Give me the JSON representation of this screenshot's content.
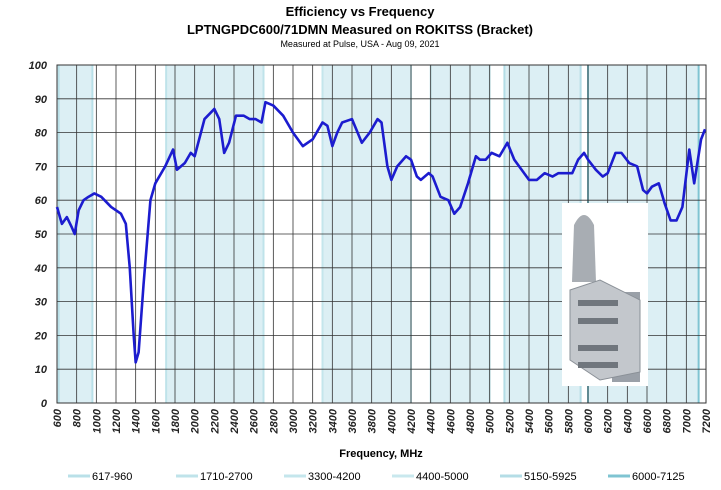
{
  "chart_data": {
    "type": "line",
    "title": "Efficiency vs Frequency",
    "subtitle": "LPTNGPDC600/71DMN Measured on ROKITSS (Bracket)",
    "note": "Measured at Pulse, USA - Aug 09, 2021",
    "x_label": "Frequency, MHz",
    "xlim": [
      600,
      7200
    ],
    "xticks": [
      600,
      800,
      1000,
      1200,
      1400,
      1600,
      1800,
      2000,
      2200,
      2400,
      2600,
      2800,
      3000,
      3200,
      3400,
      3600,
      3800,
      4000,
      4200,
      4400,
      4600,
      4800,
      5000,
      5200,
      5400,
      5600,
      5800,
      6000,
      6200,
      6400,
      6600,
      6800,
      7000,
      7200
    ],
    "ylim": [
      0,
      100
    ],
    "yticks": [
      0,
      10,
      20,
      30,
      40,
      50,
      60,
      70,
      80,
      90,
      100
    ],
    "grid": true,
    "bands": [
      {
        "label": "617-960",
        "start": 617,
        "end": 960,
        "color": "#b9e0e8"
      },
      {
        "label": "1710-2700",
        "start": 1710,
        "end": 2700,
        "color": "#bfe3ea"
      },
      {
        "label": "3300-4200",
        "start": 3300,
        "end": 4200,
        "color": "#c4e6ec"
      },
      {
        "label": "4400-5000",
        "start": 4400,
        "end": 5000,
        "color": "#c9e8ee"
      },
      {
        "label": "5150-5925",
        "start": 5150,
        "end": 5925,
        "color": "#b4dde6"
      },
      {
        "label": "6000-7125",
        "start": 6000,
        "end": 7125,
        "color": "#7fc4d2"
      }
    ],
    "x": [
      600,
      650,
      700,
      750,
      780,
      820,
      870,
      920,
      980,
      1050,
      1150,
      1250,
      1300,
      1340,
      1380,
      1400,
      1430,
      1480,
      1550,
      1600,
      1700,
      1780,
      1820,
      1900,
      1960,
      2000,
      2100,
      2200,
      2250,
      2300,
      2350,
      2420,
      2500,
      2560,
      2620,
      2680,
      2720,
      2800,
      2900,
      3000,
      3100,
      3200,
      3300,
      3350,
      3400,
      3450,
      3500,
      3600,
      3700,
      3780,
      3860,
      3900,
      3960,
      4000,
      4060,
      4150,
      4200,
      4260,
      4300,
      4380,
      4420,
      4500,
      4580,
      4640,
      4700,
      4780,
      4860,
      4900,
      4960,
      5020,
      5100,
      5180,
      5250,
      5300,
      5400,
      5480,
      5560,
      5640,
      5700,
      5780,
      5840,
      5900,
      5960,
      6000,
      6080,
      6150,
      6200,
      6280,
      6340,
      6420,
      6500,
      6560,
      6600,
      6650,
      6720,
      6780,
      6840,
      6900,
      6960,
      7030,
      7080,
      7150,
      7190
    ],
    "series": [
      {
        "color": "#1c1ccf",
        "values": [
          58,
          53,
          55,
          52,
          50,
          57,
          60,
          61,
          62,
          61,
          58,
          56,
          53,
          40,
          20,
          12,
          15,
          35,
          60,
          65,
          70,
          75,
          69,
          71,
          74,
          73,
          84,
          87,
          84,
          74,
          77,
          85,
          85,
          84,
          84,
          83,
          89,
          88,
          85,
          80,
          76,
          78,
          83,
          82,
          76,
          80,
          83,
          84,
          77,
          80,
          84,
          83,
          70,
          66,
          70,
          73,
          72,
          67,
          66,
          68,
          67,
          61,
          60,
          56,
          58,
          65,
          73,
          72,
          72,
          74,
          73,
          77,
          72,
          70,
          66,
          66,
          68,
          67,
          68,
          68,
          68,
          72,
          74,
          72,
          69,
          67,
          68,
          74,
          74,
          71,
          70,
          63,
          62,
          64,
          65,
          59,
          54,
          54,
          58,
          75,
          65,
          78,
          81
        ]
      }
    ]
  }
}
